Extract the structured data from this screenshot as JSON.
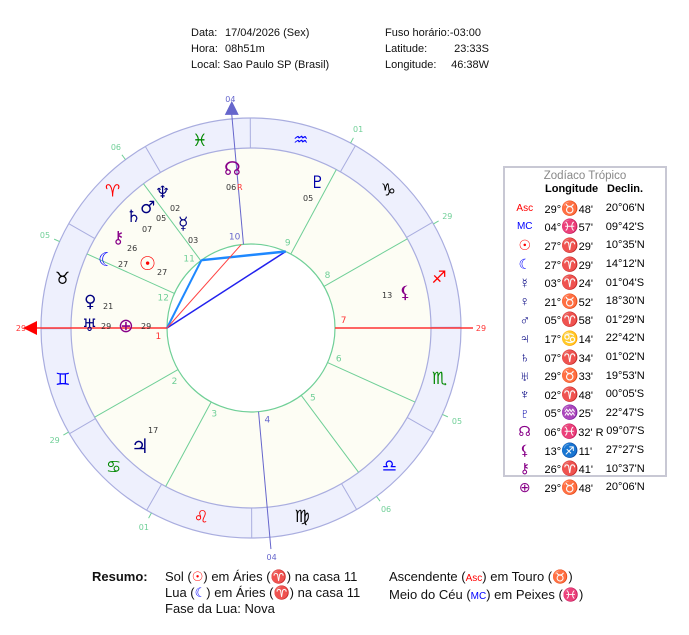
{
  "header": {
    "data_label": "Data:",
    "data_value": "17/04/2026 (Sex)",
    "hora_label": "Hora:",
    "hora_value": "08h51m",
    "local_label": "Local:",
    "local_value": "Sao Paulo SP (Brasil)",
    "fuso_label": "Fuso horário:",
    "fuso_value": "-03:00",
    "lat_label": "Latitude:",
    "lat_value": "23:33S",
    "lon_label": "Longitude:",
    "lon_value": "46:38W"
  },
  "colors": {
    "band": "#eef0fd",
    "band_stroke": "#a9addf",
    "interior": "#fdfdf4",
    "house": "#6fcf97",
    "asc": "#ff3333",
    "mc": "#6666cc",
    "red": "#ff0000",
    "black": "#000000",
    "blue": "#0000ff",
    "green": "#008800",
    "navy": "#000080",
    "purple": "#880088"
  },
  "signs": [
    {
      "name": "Aries",
      "glyph": "♈",
      "color": "#ff0000"
    },
    {
      "name": "Taurus",
      "glyph": "♉",
      "color": "#000000"
    },
    {
      "name": "Gemini",
      "glyph": "♊",
      "color": "#0000ff"
    },
    {
      "name": "Cancer",
      "glyph": "♋",
      "color": "#008800"
    },
    {
      "name": "Leo",
      "glyph": "♌",
      "color": "#ff0000"
    },
    {
      "name": "Virgo",
      "glyph": "♍",
      "color": "#000000"
    },
    {
      "name": "Libra",
      "glyph": "♎",
      "color": "#0000ff"
    },
    {
      "name": "Scorpio",
      "glyph": "♏",
      "color": "#008800"
    },
    {
      "name": "Sagittarius",
      "glyph": "♐",
      "color": "#ff0000"
    },
    {
      "name": "Capricorn",
      "glyph": "♑",
      "color": "#000000"
    },
    {
      "name": "Aquarius",
      "glyph": "♒",
      "color": "#0000ff"
    },
    {
      "name": "Pisces",
      "glyph": "♓",
      "color": "#008800"
    }
  ],
  "cusps": [
    {
      "house": "1",
      "sign": 1,
      "deg": "29",
      "min": 48
    },
    {
      "house": "2",
      "sign": 2,
      "deg": "29"
    },
    {
      "house": "3",
      "sign": 4,
      "deg": "01"
    },
    {
      "house": "4",
      "sign": 5,
      "deg": "04",
      "min": 57
    },
    {
      "house": "5",
      "sign": 6,
      "deg": "06"
    },
    {
      "house": "6",
      "sign": 7,
      "deg": "05"
    },
    {
      "house": "7",
      "sign": 7,
      "deg": "29",
      "min": 48
    },
    {
      "house": "8",
      "sign": 8,
      "deg": "29"
    },
    {
      "house": "9",
      "sign": 10,
      "deg": "01"
    },
    {
      "house": "10",
      "sign": 11,
      "deg": "04",
      "min": 57
    },
    {
      "house": "11",
      "sign": 0,
      "deg": "06"
    },
    {
      "house": "12",
      "sign": 1,
      "deg": "05"
    }
  ],
  "chart_planets": {
    "neptune": {
      "glyph": "♆",
      "deg": "02"
    },
    "mars": {
      "glyph": "♂",
      "deg": "05"
    },
    "saturn": {
      "glyph": "♄",
      "deg": "07"
    },
    "mercury": {
      "glyph": "☿",
      "deg": "03"
    },
    "chiron": {
      "glyph": "⚷",
      "deg": "26"
    },
    "moon": {
      "glyph": "☾",
      "deg": "27"
    },
    "sun": {
      "glyph": "☉",
      "deg": "27"
    },
    "venus": {
      "glyph": "♀",
      "deg": "21"
    },
    "uranus": {
      "glyph": "♅",
      "deg": "29"
    },
    "fortune": {
      "glyph": "⊕",
      "deg": "29"
    },
    "jupiter": {
      "glyph": "♃",
      "deg": "17"
    },
    "lilith": {
      "glyph": "⚸",
      "deg": "13"
    },
    "pluto": {
      "glyph": "♇",
      "deg": "05"
    },
    "node": {
      "glyph": "☊",
      "deg": "06",
      "retro": "R"
    }
  },
  "table": {
    "title": "Zodíaco Trópico",
    "col_longitude": "Longitude",
    "col_declination": "Declin.",
    "rows": [
      {
        "name": "asc",
        "glyph": "Asc",
        "color": "#ff0000",
        "deg": "29°",
        "sign": "♉",
        "sign_color": "#000000",
        "min": "48'",
        "decl": "20°06'N"
      },
      {
        "name": "mc",
        "glyph": "MC",
        "color": "#0000ff",
        "deg": "04°",
        "sign": "♓",
        "sign_color": "#008800",
        "min": "57'",
        "decl": "09°42'S"
      },
      {
        "name": "sun",
        "glyph": "☉",
        "color": "#ff0000",
        "deg": "27°",
        "sign": "♈",
        "sign_color": "#ff0000",
        "min": "29'",
        "decl": "10°35'N"
      },
      {
        "name": "moon",
        "glyph": "☾",
        "color": "#0000ff",
        "deg": "27°",
        "sign": "♈",
        "sign_color": "#ff0000",
        "min": "29'",
        "decl": "14°12'N"
      },
      {
        "name": "mercury",
        "glyph": "☿",
        "color": "#000080",
        "deg": "03°",
        "sign": "♈",
        "sign_color": "#ff0000",
        "min": "24'",
        "decl": "01°04'S"
      },
      {
        "name": "venus",
        "glyph": "♀",
        "color": "#000080",
        "deg": "21°",
        "sign": "♉",
        "sign_color": "#000000",
        "min": "52'",
        "decl": "18°30'N"
      },
      {
        "name": "mars",
        "glyph": "♂",
        "color": "#000080",
        "deg": "05°",
        "sign": "♈",
        "sign_color": "#ff0000",
        "min": "58'",
        "decl": "01°29'N"
      },
      {
        "name": "jupiter",
        "glyph": "♃",
        "color": "#000080",
        "deg": "17°",
        "sign": "♋",
        "sign_color": "#008800",
        "min": "14'",
        "decl": "22°42'N"
      },
      {
        "name": "saturn",
        "glyph": "♄",
        "color": "#000080",
        "deg": "07°",
        "sign": "♈",
        "sign_color": "#ff0000",
        "min": "34'",
        "decl": "01°02'N"
      },
      {
        "name": "uranus",
        "glyph": "♅",
        "color": "#000080",
        "deg": "29°",
        "sign": "♉",
        "sign_color": "#000000",
        "min": "33'",
        "decl": "19°53'N"
      },
      {
        "name": "neptune",
        "glyph": "♆",
        "color": "#000080",
        "deg": "02°",
        "sign": "♈",
        "sign_color": "#ff0000",
        "min": "48'",
        "decl": "00°05'S"
      },
      {
        "name": "pluto",
        "glyph": "♇",
        "color": "#0000aa",
        "deg": "05°",
        "sign": "♒",
        "sign_color": "#0000ff",
        "min": "25'",
        "decl": "22°47'S"
      },
      {
        "name": "node",
        "glyph": "☊",
        "color": "#880088",
        "deg": "06°",
        "sign": "♓",
        "sign_color": "#008800",
        "min": "32' R",
        "decl": "09°07'S"
      },
      {
        "name": "lilith",
        "glyph": "⚸",
        "color": "#880088",
        "deg": "13°",
        "sign": "♐",
        "sign_color": "#ff0000",
        "min": "11'",
        "decl": "27°27'S"
      },
      {
        "name": "chiron",
        "glyph": "⚷",
        "color": "#880088",
        "deg": "26°",
        "sign": "♈",
        "sign_color": "#ff0000",
        "min": "41'",
        "decl": "10°37'N"
      },
      {
        "name": "fortune",
        "glyph": "⊕",
        "color": "#880088",
        "deg": "29°",
        "sign": "♉",
        "sign_color": "#000000",
        "min": "48'",
        "decl": "20°06'N"
      }
    ]
  },
  "summary": {
    "label": "Resumo:",
    "sun_a": "Sol (",
    "sun_g": "☉",
    "sun_b": ") em Áries (",
    "sun_s": "♈",
    "sun_c": ") na casa 11",
    "moon_a": "Lua (",
    "moon_g": "☾",
    "moon_b": ") em Áries (",
    "moon_s": "♈",
    "moon_c": ") na casa 11",
    "phase": "Fase da Lua: Nova",
    "asc_a": "Ascendente (",
    "asc_g": "Asc",
    "asc_b": ") em Touro (",
    "asc_s": "♉",
    "asc_c": ")",
    "mc_a": "Meio do Céu (",
    "mc_g": "MC",
    "mc_b": ") em Peixes (",
    "mc_s": "♓",
    "mc_c": ")"
  }
}
